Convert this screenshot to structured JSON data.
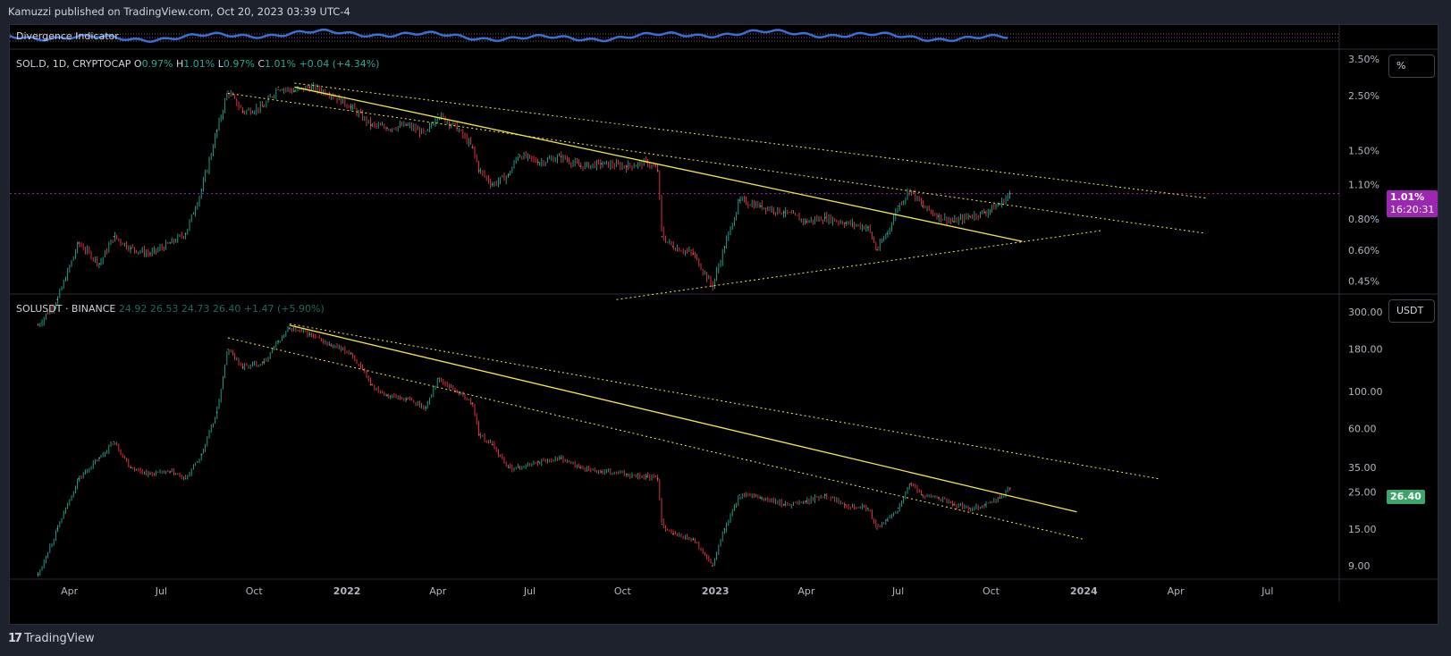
{
  "header": {
    "publish_text": "Kamuzzi published on TradingView.com, Oct 20, 2023 03:39 UTC-4"
  },
  "indicator": {
    "label": "Divergence Indicator",
    "color": "#3a6fd8"
  },
  "colors": {
    "up": "#22ab94",
    "down": "#f23645",
    "trendline": "#f5e84a",
    "current_line": "#9c27b0",
    "price_tag_top": "#9c27b0",
    "price_tag_bottom": "#3ca56b"
  },
  "pane_top": {
    "legend": {
      "symbol": "SOL.D, 1D, CRYPTOCAP",
      "o_label": "O",
      "o": "0.97%",
      "h_label": "H",
      "h": "1.01%",
      "l_label": "L",
      "l": "0.97%",
      "c_label": "C",
      "c": "1.01%",
      "change": "+0.04 (+4.34%)"
    },
    "unit_button": "%",
    "price_tag": {
      "value": "1.01%",
      "countdown": "16:20:31"
    }
  },
  "pane_bottom": {
    "legend": {
      "symbol": "SOLUSDT · BINANCE",
      "o": "24.92",
      "h": "26.53",
      "l": "24.73",
      "c": "26.40",
      "change": "+1.47 (+5.90%)"
    },
    "unit_button": "USDT",
    "price_tag": {
      "value": "26.40"
    }
  },
  "footer": {
    "brand": "TradingView",
    "logo_glyph": "17"
  },
  "chart_data": [
    {
      "type": "line",
      "title": "SOL.D, 1D, CRYPTOCAP",
      "scale": "log",
      "y_unit": "%",
      "y_ticks": [
        "3.50%",
        "2.50%",
        "1.50%",
        "1.10%",
        "0.80%",
        "0.60%",
        "0.45%"
      ],
      "x": [
        "2021-03-01",
        "2021-03-20",
        "2021-04-10",
        "2021-05-01",
        "2021-05-15",
        "2021-06-01",
        "2021-06-20",
        "2021-07-10",
        "2021-07-25",
        "2021-08-10",
        "2021-08-25",
        "2021-09-05",
        "2021-09-20",
        "2021-10-10",
        "2021-10-25",
        "2021-11-10",
        "2021-11-25",
        "2021-12-15",
        "2022-01-05",
        "2022-01-25",
        "2022-02-10",
        "2022-03-01",
        "2022-03-20",
        "2022-04-01",
        "2022-04-20",
        "2022-05-05",
        "2022-05-12",
        "2022-05-25",
        "2022-06-10",
        "2022-06-20",
        "2022-07-10",
        "2022-08-01",
        "2022-08-20",
        "2022-09-10",
        "2022-10-05",
        "2022-10-25",
        "2022-11-05",
        "2022-11-09",
        "2022-11-20",
        "2022-12-10",
        "2022-12-29",
        "2023-01-10",
        "2023-01-25",
        "2023-02-15",
        "2023-03-10",
        "2023-04-01",
        "2023-04-20",
        "2023-05-10",
        "2023-06-01",
        "2023-06-10",
        "2023-06-20",
        "2023-07-01",
        "2023-07-13",
        "2023-07-25",
        "2023-08-10",
        "2023-08-25",
        "2023-09-10",
        "2023-09-25",
        "2023-10-10",
        "2023-10-20"
      ],
      "y": [
        0.3,
        0.38,
        0.64,
        0.53,
        0.68,
        0.61,
        0.58,
        0.64,
        0.7,
        1.05,
        1.8,
        2.6,
        2.15,
        2.25,
        2.7,
        2.6,
        2.7,
        2.55,
        2.25,
        1.9,
        1.85,
        1.9,
        1.75,
        2.1,
        1.85,
        1.55,
        1.25,
        1.1,
        1.2,
        1.45,
        1.35,
        1.42,
        1.3,
        1.33,
        1.3,
        1.35,
        1.25,
        0.68,
        0.62,
        0.58,
        0.43,
        0.62,
        0.95,
        0.9,
        0.85,
        0.78,
        0.81,
        0.77,
        0.74,
        0.6,
        0.7,
        0.9,
        1.05,
        0.9,
        0.82,
        0.78,
        0.82,
        0.85,
        0.92,
        1.01
      ],
      "current_value": 1.01,
      "trendlines": [
        {
          "style": "solid",
          "from": [
            "2021-11-10",
            2.7
          ],
          "to": [
            "2023-11-01",
            0.65
          ]
        },
        {
          "style": "dotted",
          "from": [
            "2021-11-10",
            2.8
          ],
          "to": [
            "2024-05-01",
            0.97
          ]
        },
        {
          "style": "dotted",
          "from": [
            "2021-09-05",
            2.55
          ],
          "to": [
            "2024-05-01",
            0.7
          ]
        },
        {
          "style": "dotted",
          "from": [
            "2022-09-25",
            0.38
          ],
          "to": [
            "2024-01-20",
            0.72
          ]
        }
      ]
    },
    {
      "type": "line",
      "title": "SOLUSDT · BINANCE",
      "scale": "log",
      "y_unit": "USDT",
      "y_ticks": [
        "300.00",
        "180.00",
        "100.00",
        "60.00",
        "35.00",
        "25.00",
        "15.00",
        "9.00"
      ],
      "x": [
        "2021-03-01",
        "2021-03-20",
        "2021-04-10",
        "2021-05-01",
        "2021-05-15",
        "2021-06-01",
        "2021-06-20",
        "2021-07-10",
        "2021-07-25",
        "2021-08-10",
        "2021-08-25",
        "2021-09-05",
        "2021-09-20",
        "2021-10-10",
        "2021-10-25",
        "2021-11-05",
        "2021-11-25",
        "2021-12-15",
        "2022-01-05",
        "2022-01-25",
        "2022-02-10",
        "2022-03-01",
        "2022-03-20",
        "2022-04-01",
        "2022-04-20",
        "2022-05-05",
        "2022-05-12",
        "2022-05-25",
        "2022-06-10",
        "2022-06-20",
        "2022-07-10",
        "2022-08-01",
        "2022-08-20",
        "2022-09-10",
        "2022-10-05",
        "2022-10-25",
        "2022-11-05",
        "2022-11-09",
        "2022-11-20",
        "2022-12-10",
        "2022-12-29",
        "2023-01-10",
        "2023-01-25",
        "2023-02-15",
        "2023-03-10",
        "2023-04-01",
        "2023-04-20",
        "2023-05-10",
        "2023-06-01",
        "2023-06-10",
        "2023-06-20",
        "2023-07-01",
        "2023-07-13",
        "2023-07-25",
        "2023-08-10",
        "2023-08-25",
        "2023-09-10",
        "2023-09-25",
        "2023-10-10",
        "2023-10-20"
      ],
      "y": [
        8,
        15,
        30,
        40,
        50,
        35,
        32,
        33,
        30,
        42,
        75,
        180,
        140,
        150,
        200,
        240,
        220,
        190,
        170,
        110,
        95,
        90,
        80,
        120,
        100,
        85,
        55,
        48,
        35,
        35,
        38,
        40,
        35,
        33,
        32,
        31,
        30,
        16,
        14,
        13,
        9,
        15,
        24,
        23,
        21,
        22,
        24,
        21,
        20,
        15,
        17,
        20,
        28,
        24,
        23,
        21,
        20,
        21,
        23,
        26.4
      ],
      "current_value": 26.4,
      "trendlines": [
        {
          "style": "solid",
          "from": [
            "2021-11-05",
            250
          ],
          "to": [
            "2023-12-25",
            19
          ]
        },
        {
          "style": "dotted",
          "from": [
            "2021-09-05",
            210
          ],
          "to": [
            "2024-01-01",
            13
          ]
        },
        {
          "style": "dotted",
          "from": [
            "2021-11-05",
            255
          ],
          "to": [
            "2024-03-15",
            30
          ]
        }
      ]
    }
  ],
  "x_axis_labels": [
    {
      "label": "Apr",
      "date": "2021-04-01"
    },
    {
      "label": "Jul",
      "date": "2021-07-01"
    },
    {
      "label": "Oct",
      "date": "2021-10-01"
    },
    {
      "label": "2022",
      "date": "2022-01-01",
      "bold": true
    },
    {
      "label": "Apr",
      "date": "2022-04-01"
    },
    {
      "label": "Jul",
      "date": "2022-07-01"
    },
    {
      "label": "Oct",
      "date": "2022-10-01"
    },
    {
      "label": "2023",
      "date": "2023-01-01",
      "bold": true
    },
    {
      "label": "Apr",
      "date": "2023-04-01"
    },
    {
      "label": "Jul",
      "date": "2023-07-01"
    },
    {
      "label": "Oct",
      "date": "2023-10-01"
    },
    {
      "label": "2024",
      "date": "2024-01-01",
      "bold": true
    },
    {
      "label": "Apr",
      "date": "2024-04-01"
    },
    {
      "label": "Jul",
      "date": "2024-07-01"
    }
  ]
}
